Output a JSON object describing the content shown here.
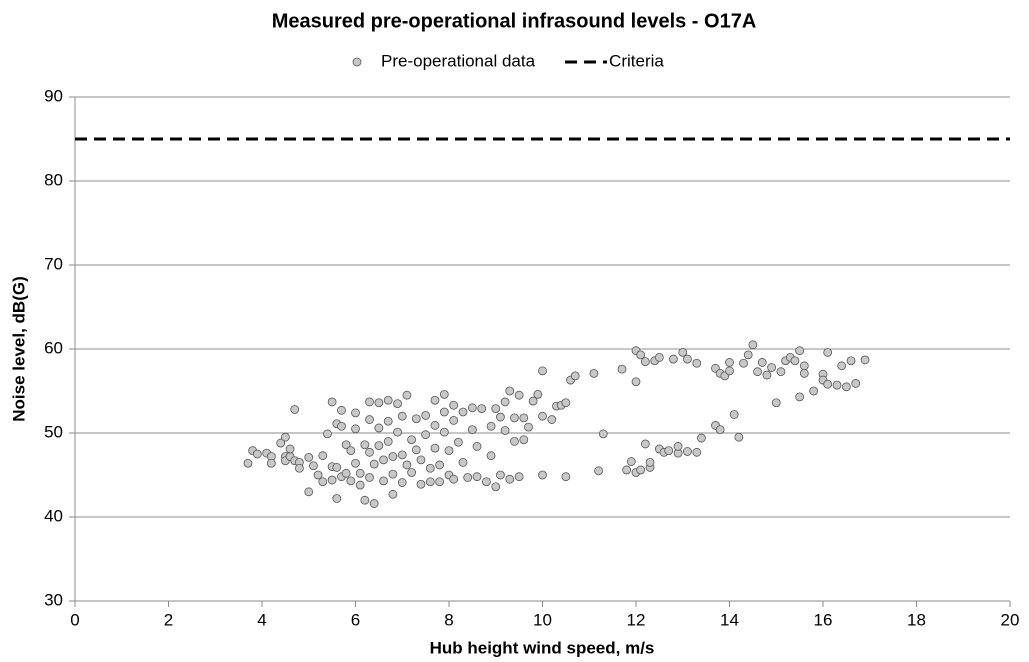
{
  "chart_data": {
    "type": "scatter",
    "title": "Measured pre-operational infrasound levels - O17A",
    "x_label": "Hub height wind speed, m/s",
    "y_label": "Noise level, dB(G)",
    "xlim": [
      0,
      20
    ],
    "xticks": [
      0,
      2,
      4,
      6,
      8,
      10,
      12,
      14,
      16,
      18,
      20
    ],
    "ylim": [
      30,
      90
    ],
    "yticks": [
      30,
      40,
      50,
      60,
      70,
      80,
      90
    ],
    "grid": true,
    "legend": "top",
    "series": [
      {
        "name": "Pre-operational data",
        "color": "#c8c8c8",
        "marker": "circle",
        "x": [
          3.7,
          3.8,
          3.9,
          4.1,
          4.2,
          4.2,
          4.4,
          4.5,
          4.5,
          4.5,
          4.6,
          4.6,
          4.7,
          4.7,
          4.8,
          4.8,
          5.0,
          5.0,
          5.1,
          5.2,
          5.3,
          5.3,
          5.4,
          5.5,
          5.5,
          5.5,
          5.6,
          5.6,
          5.6,
          5.7,
          5.7,
          5.7,
          5.8,
          5.8,
          5.9,
          5.9,
          6.0,
          6.0,
          6.0,
          6.1,
          6.1,
          6.2,
          6.2,
          6.3,
          6.3,
          6.3,
          6.3,
          6.4,
          6.4,
          6.5,
          6.5,
          6.5,
          6.6,
          6.6,
          6.7,
          6.7,
          6.7,
          6.8,
          6.8,
          6.8,
          6.9,
          6.9,
          7.0,
          7.0,
          7.0,
          7.1,
          7.1,
          7.2,
          7.2,
          7.3,
          7.3,
          7.4,
          7.4,
          7.5,
          7.5,
          7.6,
          7.6,
          7.7,
          7.7,
          7.7,
          7.8,
          7.8,
          7.9,
          7.9,
          7.9,
          8.0,
          8.0,
          8.1,
          8.1,
          8.1,
          8.2,
          8.3,
          8.3,
          8.4,
          8.5,
          8.5,
          8.6,
          8.6,
          8.7,
          8.8,
          8.9,
          8.9,
          9.0,
          9.0,
          9.1,
          9.1,
          9.2,
          9.2,
          9.3,
          9.3,
          9.4,
          9.4,
          9.5,
          9.5,
          9.6,
          9.6,
          9.7,
          9.8,
          9.9,
          10.0,
          10.0,
          10.0,
          10.2,
          10.3,
          10.4,
          10.5,
          10.5,
          10.6,
          10.7,
          11.1,
          11.2,
          11.3,
          11.7,
          11.8,
          11.9,
          12.0,
          12.0,
          12.0,
          12.1,
          12.1,
          12.2,
          12.2,
          12.3,
          12.3,
          12.4,
          12.5,
          12.5,
          12.6,
          12.7,
          12.8,
          12.9,
          12.9,
          13.0,
          13.1,
          13.1,
          13.3,
          13.3,
          13.4,
          13.7,
          13.7,
          13.8,
          13.8,
          13.9,
          14.0,
          14.0,
          14.1,
          14.2,
          14.3,
          14.4,
          14.5,
          14.6,
          14.7,
          14.8,
          14.9,
          15.0,
          15.1,
          15.2,
          15.3,
          15.4,
          15.5,
          15.5,
          15.6,
          15.6,
          15.8,
          16.0,
          16.0,
          16.1,
          16.1,
          16.3,
          16.4,
          16.5,
          16.6,
          16.7,
          16.9
        ],
        "values": [
          46.4,
          47.9,
          47.5,
          47.6,
          47.2,
          46.4,
          48.8,
          49.5,
          47.2,
          46.7,
          47.2,
          48.1,
          52.8,
          46.7,
          46.5,
          45.8,
          43.0,
          47.1,
          46.1,
          45.0,
          47.3,
          44.2,
          49.9,
          53.7,
          46.0,
          44.4,
          51.1,
          45.9,
          42.2,
          52.7,
          50.8,
          44.8,
          48.6,
          45.2,
          47.9,
          44.3,
          52.4,
          50.5,
          46.4,
          45.2,
          43.8,
          48.6,
          42.0,
          53.7,
          51.6,
          47.7,
          44.7,
          41.6,
          46.3,
          53.6,
          50.6,
          48.5,
          46.8,
          44.3,
          53.9,
          51.4,
          49.0,
          47.2,
          45.1,
          42.7,
          53.5,
          50.1,
          52.0,
          47.4,
          44.1,
          54.5,
          46.2,
          49.2,
          45.3,
          51.7,
          48.0,
          43.9,
          46.8,
          52.1,
          49.8,
          45.8,
          44.2,
          53.9,
          50.9,
          48.2,
          46.2,
          44.2,
          54.6,
          52.5,
          50.1,
          47.9,
          45.0,
          53.3,
          51.5,
          44.5,
          48.9,
          52.5,
          46.5,
          44.7,
          50.4,
          53.0,
          48.4,
          44.8,
          52.9,
          44.2,
          50.8,
          47.3,
          43.6,
          52.9,
          51.9,
          45.0,
          50.3,
          53.7,
          55.0,
          44.5,
          51.8,
          49.0,
          54.5,
          44.8,
          51.8,
          49.2,
          50.7,
          53.8,
          54.6,
          57.4,
          52.0,
          45.0,
          51.6,
          53.2,
          53.3,
          53.6,
          44.8,
          56.3,
          56.8,
          57.1,
          45.5,
          49.9,
          57.6,
          45.6,
          46.6,
          59.8,
          56.1,
          45.3,
          45.6,
          59.3,
          48.7,
          58.5,
          45.9,
          46.5,
          58.6,
          59.0,
          48.1,
          47.7,
          47.9,
          58.8,
          47.6,
          48.4,
          59.6,
          58.8,
          47.8,
          58.3,
          47.7,
          49.4,
          57.7,
          50.9,
          57.1,
          50.4,
          56.8,
          57.4,
          58.4,
          52.2,
          49.5,
          58.3,
          59.3,
          60.5,
          57.3,
          58.4,
          56.9,
          57.8,
          53.6,
          57.3,
          58.6,
          59.0,
          58.6,
          59.8,
          54.3,
          57.1,
          58.0,
          55.0,
          57.0,
          56.3,
          59.6,
          55.8,
          55.7,
          58.0,
          55.5,
          58.6,
          55.9,
          58.7
        ]
      },
      {
        "name": "Criteria",
        "color": "#000000",
        "linestyle": "dashed",
        "x": [
          0,
          20
        ],
        "values": [
          85,
          85
        ]
      }
    ]
  }
}
